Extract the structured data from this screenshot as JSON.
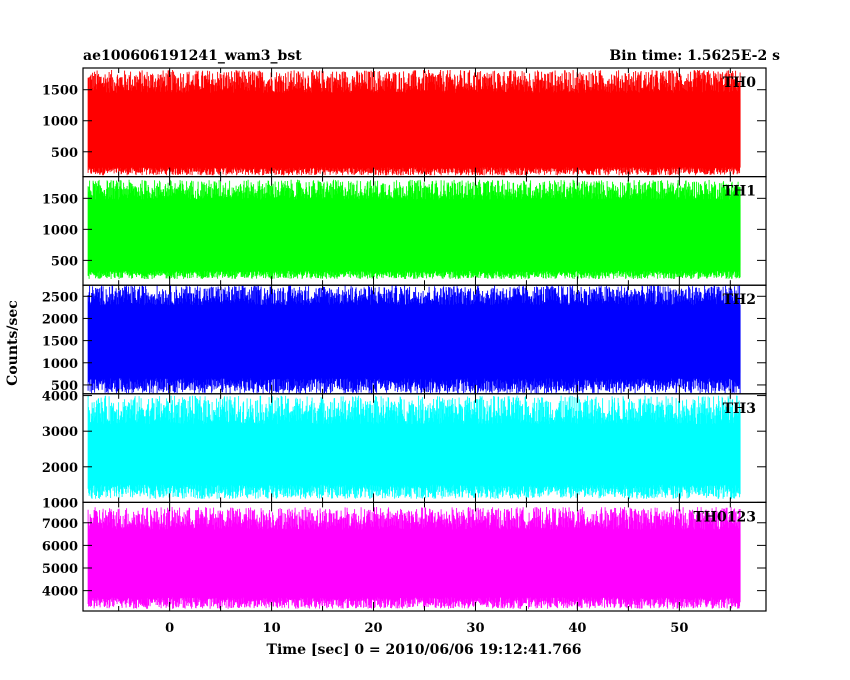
{
  "chart_data": {
    "type": "line",
    "title": "ae100606191241_wam3_bst",
    "subtitle": "Bin time: 1.5625E-2 s",
    "xlabel": "Time [sec] 0 = 2010/06/06 19:12:41.766",
    "ylabel": "Counts/sec",
    "xlim": [
      -8.5,
      58.5
    ],
    "data_xrange": [
      -8,
      56
    ],
    "xticks": [
      0,
      10,
      20,
      30,
      40,
      50
    ],
    "grid": false,
    "legend": "none",
    "panels": [
      {
        "name": "TH0",
        "color": "#ff0000",
        "ylim": [
          100,
          1850
        ],
        "yticks": [
          500,
          1000,
          1500
        ],
        "band_low": [
          120,
          250
        ],
        "band_high": [
          1450,
          1820
        ],
        "mean": 800
      },
      {
        "name": "TH1",
        "color": "#00ff00",
        "ylim": [
          100,
          1850
        ],
        "yticks": [
          500,
          1000,
          1500
        ],
        "band_low": [
          200,
          330
        ],
        "band_high": [
          1480,
          1800
        ],
        "mean": 900
      },
      {
        "name": "TH2",
        "color": "#0000ff",
        "ylim": [
          300,
          2750
        ],
        "yticks": [
          500,
          1000,
          1500,
          2000,
          2500
        ],
        "band_low": [
          300,
          650
        ],
        "band_high": [
          2300,
          2750
        ],
        "mean": 1500
      },
      {
        "name": "TH3",
        "color": "#00ffff",
        "ylim": [
          1000,
          4050
        ],
        "yticks": [
          1000,
          2000,
          3000,
          4000
        ],
        "band_low": [
          1100,
          1500
        ],
        "band_high": [
          3200,
          4000
        ],
        "mean": 2400
      },
      {
        "name": "TH0123",
        "color": "#ff00ff",
        "ylim": [
          3100,
          7900
        ],
        "yticks": [
          4000,
          5000,
          6000,
          7000
        ],
        "band_low": [
          3200,
          3700
        ],
        "band_high": [
          6700,
          7700
        ],
        "mean": 5300
      }
    ]
  }
}
